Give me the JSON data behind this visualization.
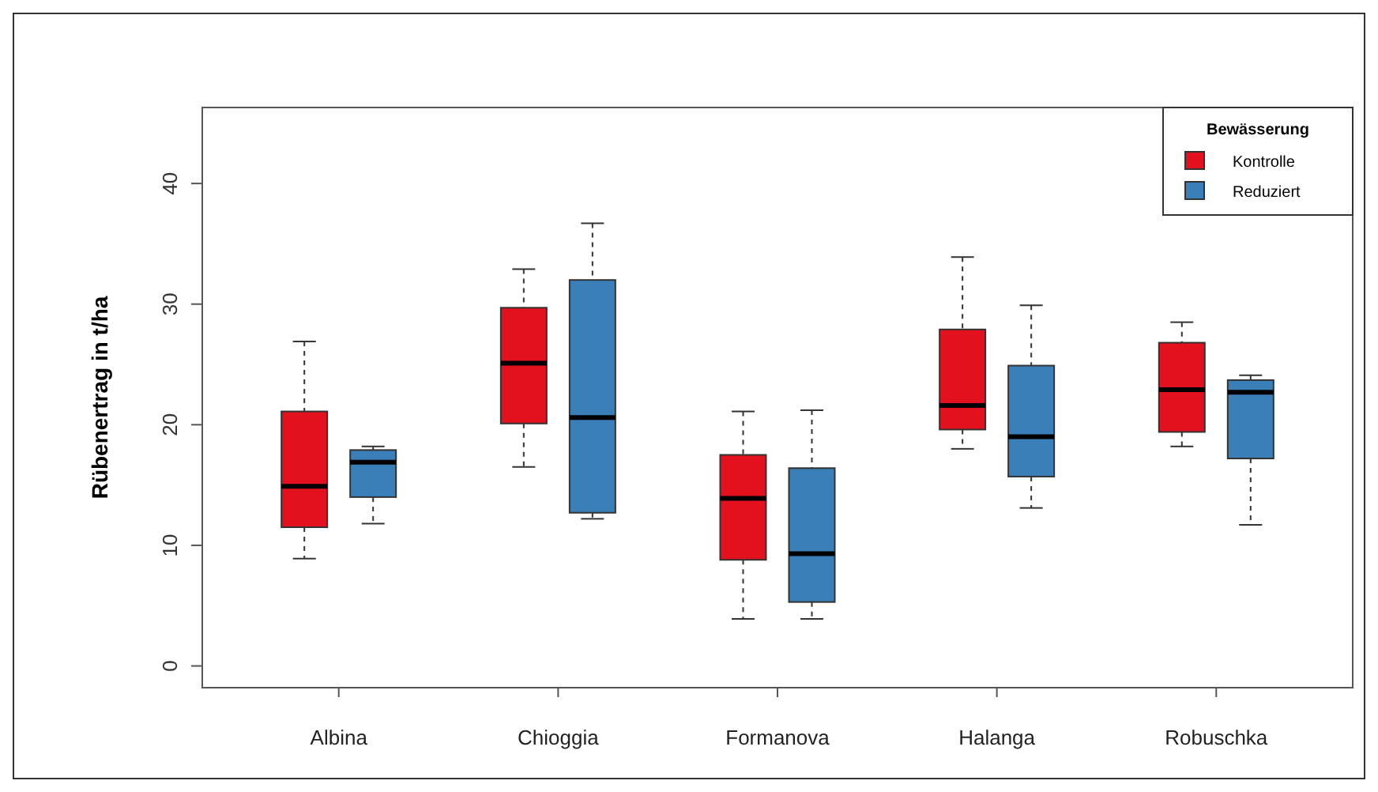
{
  "chart_data": {
    "type": "box",
    "ylabel": "Rübenertrag in t/ha",
    "legend_title": "Bewässerung",
    "legend": "top right",
    "categories": [
      "Albina",
      "Chioggia",
      "Formanova",
      "Halanga",
      "Robuschka"
    ],
    "ylim": [
      -1.8,
      46.3
    ],
    "yticks": [
      0,
      10,
      20,
      30,
      40
    ],
    "grid": false,
    "series": [
      {
        "name": "Kontrolle",
        "color": "#e3101e",
        "boxes": [
          {
            "low": 8.9,
            "q1": 11.5,
            "median": 14.9,
            "q3": 21.1,
            "high": 26.9
          },
          {
            "low": 16.5,
            "q1": 20.1,
            "median": 25.1,
            "q3": 29.7,
            "high": 32.9
          },
          {
            "low": 3.9,
            "q1": 8.8,
            "median": 13.9,
            "q3": 17.5,
            "high": 21.1
          },
          {
            "low": 18.0,
            "q1": 19.6,
            "median": 21.6,
            "q3": 27.9,
            "high": 33.9
          },
          {
            "low": 18.2,
            "q1": 19.4,
            "median": 22.9,
            "q3": 26.8,
            "high": 28.5
          }
        ]
      },
      {
        "name": "Reduziert",
        "color": "#3a7fb8",
        "boxes": [
          {
            "low": 11.8,
            "q1": 14.0,
            "median": 16.9,
            "q3": 17.9,
            "high": 18.2
          },
          {
            "low": 12.2,
            "q1": 12.7,
            "median": 20.6,
            "q3": 32.0,
            "high": 36.7
          },
          {
            "low": 3.9,
            "q1": 5.3,
            "median": 9.3,
            "q3": 16.4,
            "high": 21.2
          },
          {
            "low": 13.1,
            "q1": 15.7,
            "median": 19.0,
            "q3": 24.9,
            "high": 29.9
          },
          {
            "low": 11.7,
            "q1": 17.2,
            "median": 22.7,
            "q3": 23.7,
            "high": 24.1
          }
        ]
      }
    ]
  }
}
